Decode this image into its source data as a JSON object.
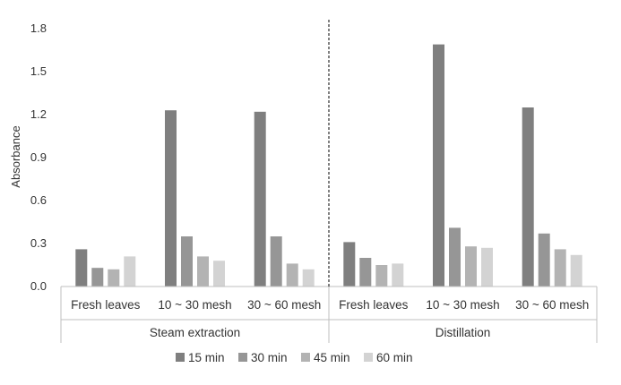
{
  "chart_data": {
    "type": "bar",
    "ylabel": "Absorbance",
    "ylim": [
      0,
      1.8
    ],
    "yticks": [
      "0.0",
      "0.3",
      "0.6",
      "0.9",
      "1.2",
      "1.5",
      "1.8"
    ],
    "groups": [
      {
        "name": "Steam extraction",
        "categories": [
          "Fresh leaves",
          "10 ~ 30 mesh",
          "30 ~ 60 mesh"
        ]
      },
      {
        "name": "Distillation",
        "categories": [
          "Fresh leaves",
          "10 ~ 30 mesh",
          "30 ~ 60 mesh"
        ]
      }
    ],
    "series": [
      {
        "name": "15 min",
        "color": "#7f7f7f",
        "values": [
          0.26,
          1.23,
          1.22,
          0.31,
          1.69,
          1.25
        ]
      },
      {
        "name": "30 min",
        "color": "#969696",
        "values": [
          0.13,
          0.35,
          0.35,
          0.2,
          0.41,
          0.37
        ]
      },
      {
        "name": "45 min",
        "color": "#b3b3b3",
        "values": [
          0.12,
          0.21,
          0.16,
          0.15,
          0.28,
          0.26
        ]
      },
      {
        "name": "60 min",
        "color": "#d3d3d3",
        "values": [
          0.21,
          0.18,
          0.12,
          0.16,
          0.27,
          0.22
        ]
      }
    ],
    "grid": false,
    "legend": "bottom"
  }
}
